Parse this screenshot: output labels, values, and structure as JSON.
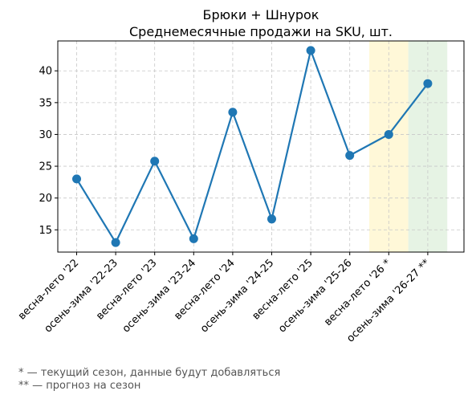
{
  "chart_data": {
    "type": "line",
    "title": [
      "Брюки + Шнурок",
      "Среднемесячные продажи на SKU, шт."
    ],
    "xlabel": "",
    "ylabel": "",
    "categories": [
      "весна-лето '22",
      "осень-зима '22-23",
      "весна-лето '23",
      "осень-зима '23-24",
      "весна-лето '24",
      "осень-зима '24-25",
      "весна-лето '25",
      "осень-зима '25-26",
      "весна-лето '26 *",
      "осень-зима '26-27 **"
    ],
    "values": [
      23.0,
      13.0,
      25.8,
      13.6,
      33.5,
      16.7,
      43.2,
      26.7,
      30.0,
      38.0
    ],
    "yticks": [
      15,
      20,
      25,
      30,
      35,
      40
    ],
    "ylim": [
      11.5,
      44.7
    ],
    "grid": true,
    "line_color": "#1f77b4",
    "highlight_bands": [
      {
        "category_index": 8,
        "color": "#fff8d8"
      },
      {
        "category_index": 9,
        "color": "#e6f3e4"
      }
    ]
  },
  "footnotes": [
    "* — текущий сезон, данные будут добавляться",
    "** — прогноз на сезон"
  ]
}
